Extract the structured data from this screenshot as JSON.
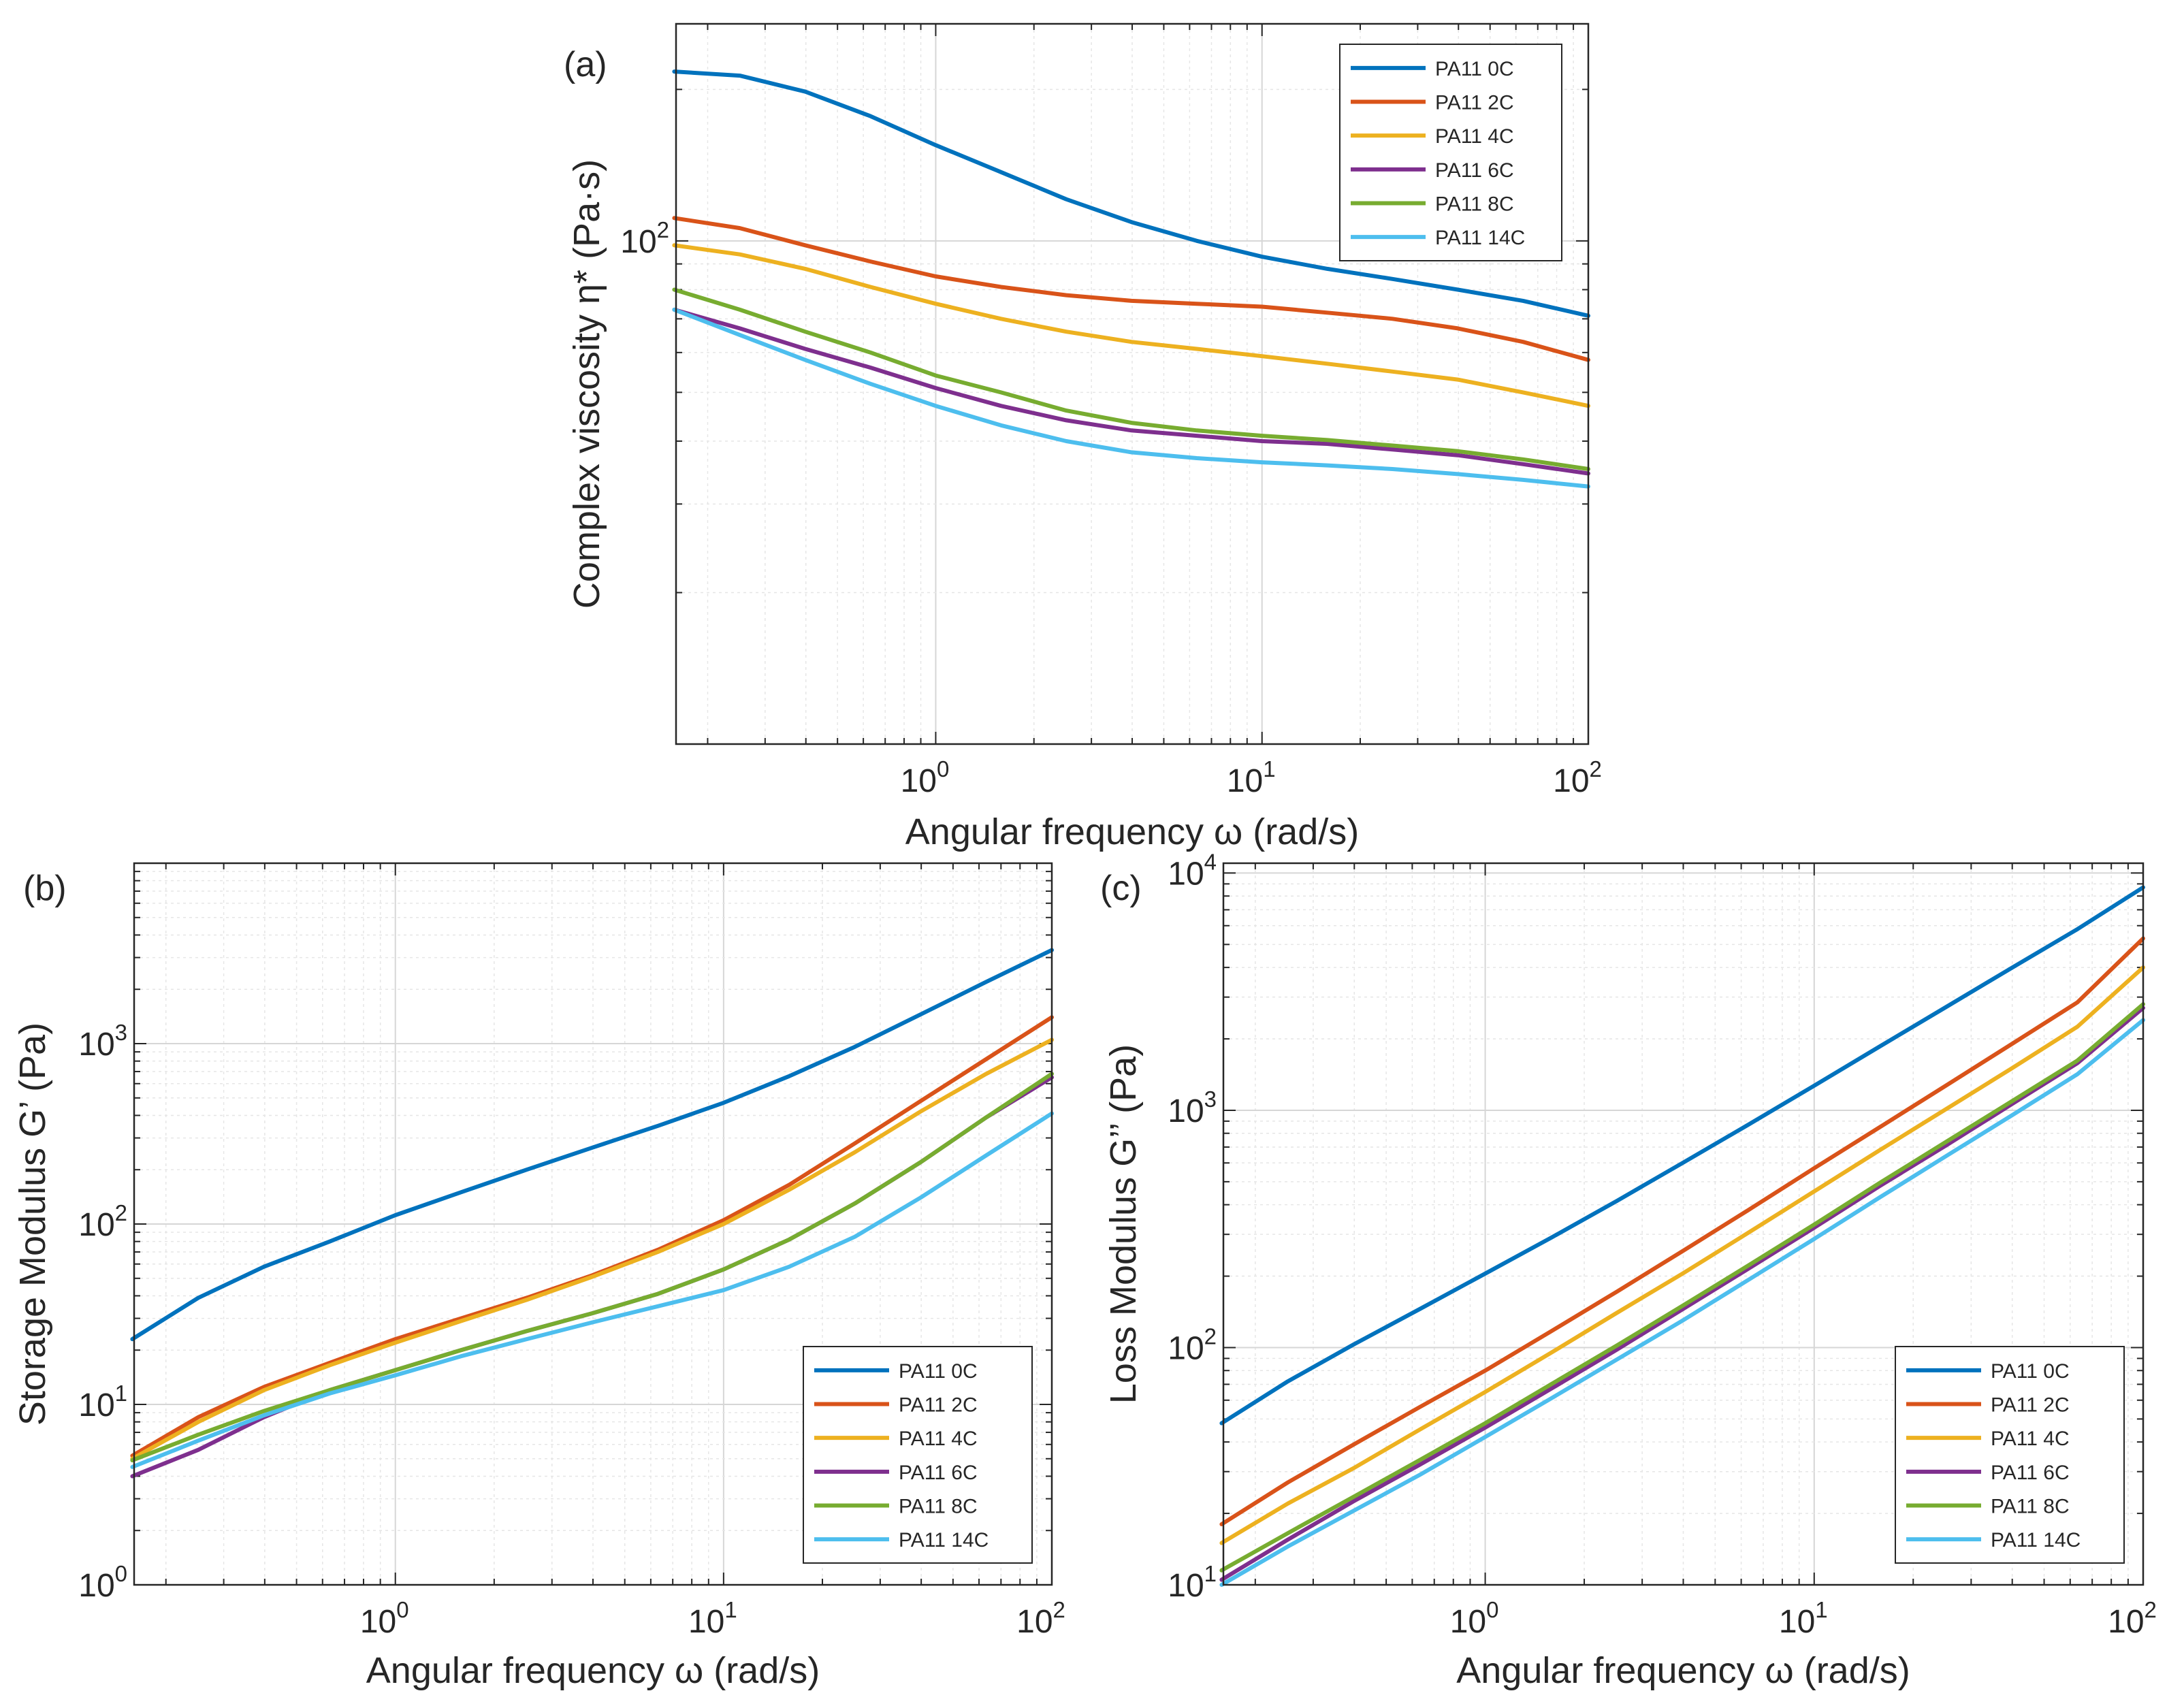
{
  "chart_data": [
    {
      "type": "line",
      "panel_label": "(a)",
      "xlabel": "Angular frequency  ω (rad/s)",
      "ylabel": "Complex viscosity η* (Pa·s)",
      "xscale": "log",
      "yscale": "log",
      "xlim": [
        0.16,
        100
      ],
      "ylim": [
        10,
        270
      ],
      "xticks": [
        {
          "value": 1,
          "base": "10",
          "exp": "0"
        },
        {
          "value": 10,
          "base": "10",
          "exp": "1"
        },
        {
          "value": 100,
          "base": "10",
          "exp": "2"
        }
      ],
      "yticks": [
        {
          "value": 100,
          "base": "10",
          "exp": "2"
        }
      ],
      "grid": true,
      "legend_position": "top-right",
      "x": [
        0.158,
        0.251,
        0.398,
        0.631,
        1.0,
        1.585,
        2.512,
        3.981,
        6.31,
        10.0,
        15.85,
        25.12,
        39.81,
        63.1,
        100.0
      ],
      "series": [
        {
          "name": "PA11 0C",
          "color": "#0072BD",
          "values": [
            217,
            213,
            198,
            177,
            155,
            137,
            121,
            109,
            100,
            93,
            88,
            84,
            80,
            76,
            71
          ]
        },
        {
          "name": "PA11 2C",
          "color": "#D95319",
          "values": [
            111,
            106,
            98,
            91,
            85,
            81,
            78,
            76,
            75,
            74,
            72,
            70,
            67,
            63,
            58
          ]
        },
        {
          "name": "PA11 4C",
          "color": "#EDB120",
          "values": [
            98,
            94,
            88,
            81,
            75,
            70,
            66,
            63,
            61,
            59,
            57,
            55,
            53,
            50,
            47
          ]
        },
        {
          "name": "PA11 6C",
          "color": "#7E2F8E",
          "values": [
            73,
            67,
            61,
            56,
            51,
            47,
            44,
            42,
            41,
            40,
            39.5,
            38.5,
            37.5,
            36,
            34.5
          ]
        },
        {
          "name": "PA11 8C",
          "color": "#77AC30",
          "values": [
            80,
            73,
            66,
            60,
            54,
            50,
            46,
            43.5,
            42,
            41,
            40.2,
            39.2,
            38.2,
            36.8,
            35.2
          ]
        },
        {
          "name": "PA11 14C",
          "color": "#4DBEEE",
          "values": [
            73,
            65,
            58,
            52,
            47,
            43,
            40,
            38,
            37,
            36.3,
            35.8,
            35.2,
            34.4,
            33.5,
            32.5
          ]
        }
      ]
    },
    {
      "type": "line",
      "panel_label": "(b)",
      "xlabel": "Angular frequency  ω (rad/s)",
      "ylabel": "Storage Modulus G’ (Pa)",
      "xscale": "log",
      "yscale": "log",
      "xlim": [
        0.16,
        100
      ],
      "ylim": [
        1,
        10000
      ],
      "xticks": [
        {
          "value": 1,
          "base": "10",
          "exp": "0"
        },
        {
          "value": 10,
          "base": "10",
          "exp": "1"
        },
        {
          "value": 100,
          "base": "10",
          "exp": "2"
        }
      ],
      "yticks": [
        {
          "value": 1,
          "base": "10",
          "exp": "0"
        },
        {
          "value": 10,
          "base": "10",
          "exp": "1"
        },
        {
          "value": 100,
          "base": "10",
          "exp": "2"
        },
        {
          "value": 1000,
          "base": "10",
          "exp": "3"
        }
      ],
      "grid": true,
      "legend_position": "bottom-right",
      "x": [
        0.158,
        0.251,
        0.398,
        0.631,
        1.0,
        1.585,
        2.512,
        3.981,
        6.31,
        10.0,
        15.85,
        25.12,
        39.81,
        63.1,
        100.0
      ],
      "series": [
        {
          "name": "PA11 0C",
          "color": "#0072BD",
          "values": [
            23,
            39,
            58,
            80,
            112,
            150,
            200,
            265,
            350,
            470,
            660,
            960,
            1450,
            2200,
            3300
          ]
        },
        {
          "name": "PA11 2C",
          "color": "#D95319",
          "values": [
            5.2,
            8.5,
            12.5,
            17,
            23,
            30,
            39,
            52,
            72,
            105,
            165,
            280,
            480,
            820,
            1400
          ]
        },
        {
          "name": "PA11 4C",
          "color": "#EDB120",
          "values": [
            5.0,
            8.0,
            12.0,
            16.5,
            22,
            29,
            38,
            51,
            70,
            100,
            155,
            250,
            420,
            680,
            1050
          ]
        },
        {
          "name": "PA11 6C",
          "color": "#7E2F8E",
          "values": [
            4.0,
            5.6,
            8.5,
            12,
            15.5,
            20,
            25.5,
            32,
            41,
            56,
            82,
            130,
            220,
            390,
            650
          ]
        },
        {
          "name": "PA11 8C",
          "color": "#77AC30",
          "values": [
            4.9,
            6.8,
            9.2,
            12,
            15.5,
            20,
            25.5,
            32,
            41,
            56,
            82,
            130,
            220,
            390,
            680
          ]
        },
        {
          "name": "PA11 14C",
          "color": "#4DBEEE",
          "values": [
            4.5,
            6.3,
            8.7,
            11.5,
            14.5,
            18.5,
            23,
            28.5,
            35,
            43,
            58,
            85,
            140,
            240,
            410
          ]
        }
      ]
    },
    {
      "type": "line",
      "panel_label": "(c)",
      "xlabel": "Angular frequency  ω (rad/s)",
      "ylabel": "Loss Modulus G’’ (Pa)",
      "xscale": "log",
      "yscale": "log",
      "xlim": [
        0.16,
        100
      ],
      "ylim": [
        10,
        11000
      ],
      "xticks": [
        {
          "value": 1,
          "base": "10",
          "exp": "0"
        },
        {
          "value": 10,
          "base": "10",
          "exp": "1"
        },
        {
          "value": 100,
          "base": "10",
          "exp": "2"
        }
      ],
      "yticks": [
        {
          "value": 10,
          "base": "10",
          "exp": "1"
        },
        {
          "value": 100,
          "base": "10",
          "exp": "2"
        },
        {
          "value": 1000,
          "base": "10",
          "exp": "3"
        },
        {
          "value": 10000,
          "base": "10",
          "exp": "4"
        }
      ],
      "grid": true,
      "legend_position": "bottom-right",
      "x": [
        0.158,
        0.251,
        0.398,
        0.631,
        1.0,
        1.585,
        2.512,
        3.981,
        6.31,
        10.0,
        15.85,
        25.12,
        39.81,
        63.1,
        100.0
      ],
      "series": [
        {
          "name": "PA11 0C",
          "color": "#0072BD",
          "values": [
            48,
            72,
            103,
            145,
            205,
            290,
            415,
            600,
            870,
            1270,
            1860,
            2720,
            3980,
            5800,
            8700
          ]
        },
        {
          "name": "PA11 2C",
          "color": "#D95319",
          "values": [
            18,
            27,
            39,
            56,
            80,
            117,
            172,
            255,
            380,
            570,
            850,
            1270,
            1900,
            2850,
            5300
          ]
        },
        {
          "name": "PA11 4C",
          "color": "#EDB120",
          "values": [
            15,
            22,
            31,
            45,
            65,
            95,
            140,
            205,
            305,
            455,
            680,
            1010,
            1500,
            2250,
            4000
          ]
        },
        {
          "name": "PA11 6C",
          "color": "#7E2F8E",
          "values": [
            10.5,
            15.5,
            22.5,
            32,
            46,
            67,
            98,
            145,
            215,
            320,
            480,
            710,
            1060,
            1580,
            2700
          ]
        },
        {
          "name": "PA11 8C",
          "color": "#77AC30",
          "values": [
            11.5,
            16.5,
            23.5,
            33.5,
            48,
            70,
            102,
            150,
            222,
            330,
            495,
            735,
            1090,
            1620,
            2800
          ]
        },
        {
          "name": "PA11 14C",
          "color": "#4DBEEE",
          "values": [
            10,
            14.5,
            20.5,
            29,
            42,
            61,
            89,
            130,
            193,
            287,
            430,
            640,
            950,
            1420,
            2400
          ]
        }
      ]
    }
  ]
}
